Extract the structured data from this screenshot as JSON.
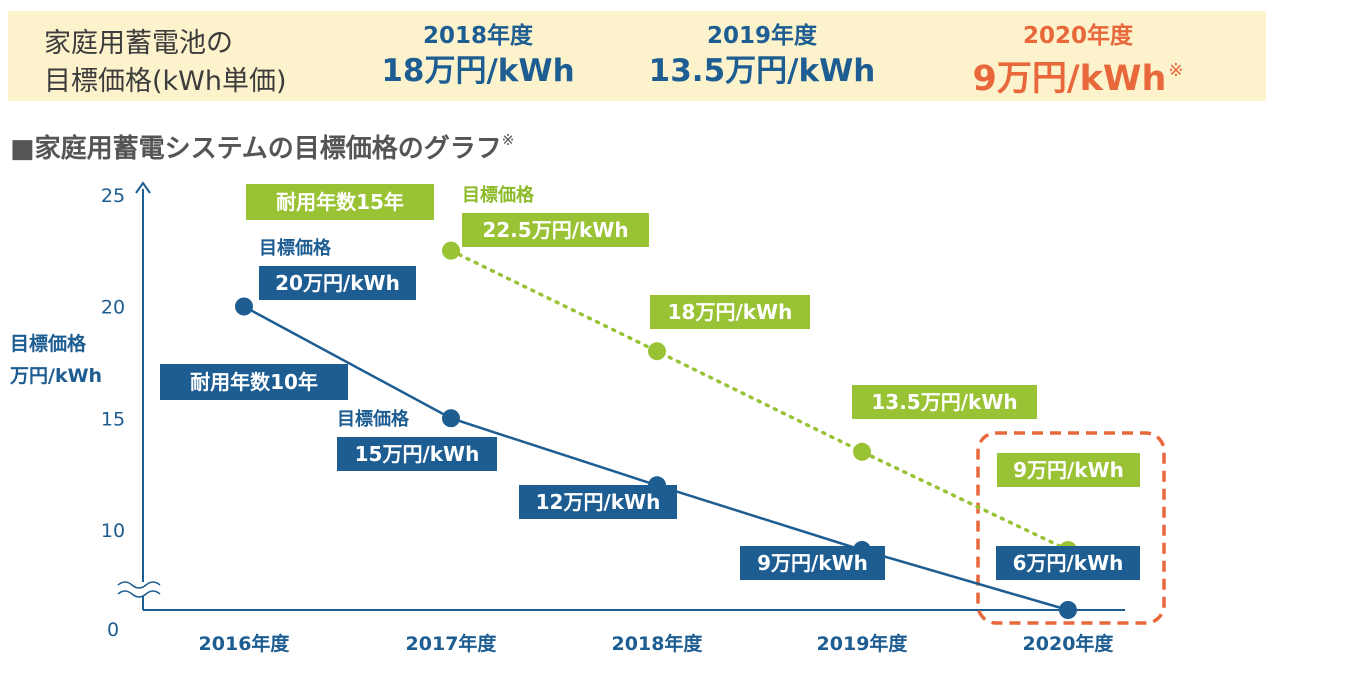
{
  "banner": {
    "label_line1": "家庭用蓄電池の",
    "label_line2": "目標価格(kWh単価)",
    "columns": [
      {
        "year": "2018年度",
        "price": "18万円/kWh",
        "highlight": false
      },
      {
        "year": "2019年度",
        "price": "13.5万円/kWh",
        "highlight": false
      },
      {
        "year": "2020年度",
        "price": "9万円/kWh",
        "highlight": true,
        "note": "※"
      }
    ]
  },
  "subtitle": {
    "text": "■家庭用蓄電システムの目標価格のグラフ",
    "note": "※"
  },
  "chart_data": {
    "type": "line",
    "ylabel_line1": "目標価格",
    "ylabel_line2": "万円/kWh",
    "categories": [
      "2016年度",
      "2017年度",
      "2018年度",
      "2019年度",
      "2020年度"
    ],
    "yticks": [
      "0",
      "10",
      "15",
      "20",
      "25"
    ],
    "y_axis_break": true,
    "series": [
      {
        "name": "耐用年数10年",
        "color": "#1d5d92",
        "style": "solid",
        "x": [
          "2016年度",
          "2017年度",
          "2018年度",
          "2019年度",
          "2020年度"
        ],
        "values": [
          20,
          15,
          12,
          9,
          6
        ],
        "labels": [
          "20万円/kWh",
          "15万円/kWh",
          "12万円/kWh",
          "9万円/kWh",
          "6万円/kWh"
        ],
        "captions": [
          "目標価格",
          "目標価格",
          "",
          "",
          ""
        ]
      },
      {
        "name": "耐用年数15年",
        "color": "#99c235",
        "style": "dotted",
        "x": [
          "2017年度",
          "2018年度",
          "2019年度",
          "2020年度"
        ],
        "values": [
          22.5,
          18,
          13.5,
          9
        ],
        "labels": [
          "22.5万円/kWh",
          "18万円/kWh",
          "13.5万円/kWh",
          "9万円/kWh"
        ],
        "captions": [
          "目標価格",
          "",
          "",
          ""
        ]
      }
    ],
    "highlight_category": "2020年度",
    "highlight_color": "#e8683b"
  }
}
